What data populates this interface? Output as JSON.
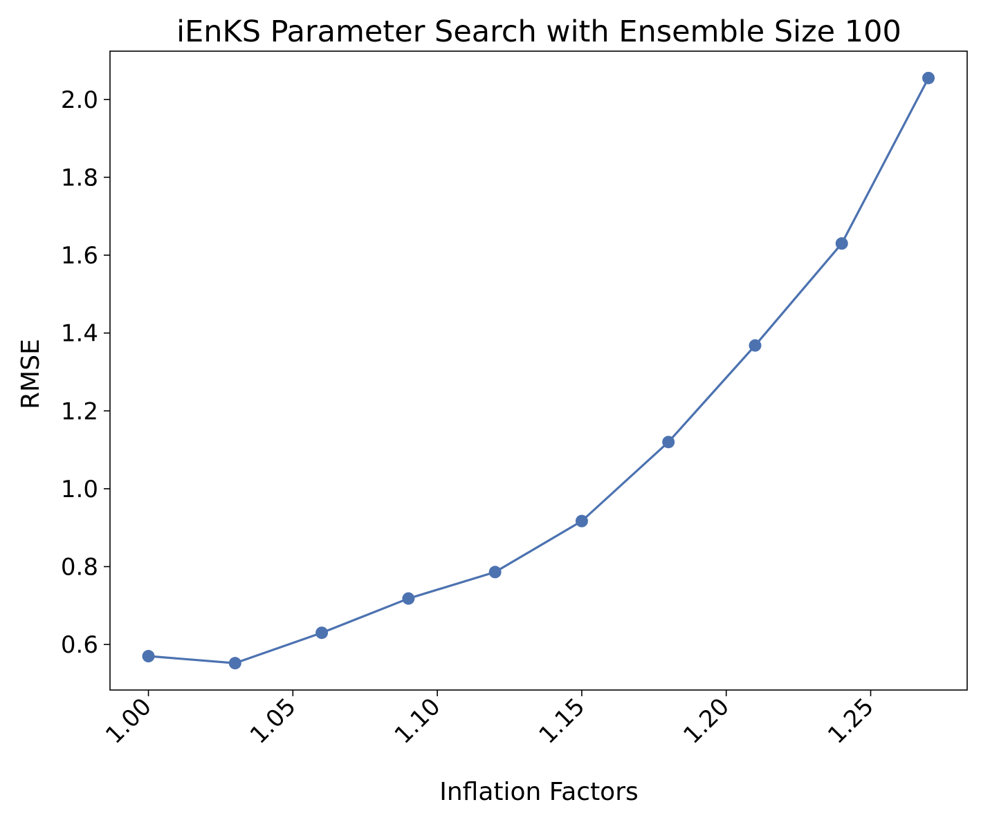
{
  "chart_data": {
    "type": "line",
    "title": "iEnKS Parameter Search with Ensemble Size 100",
    "xlabel": "Inflation Factors",
    "ylabel": "RMSE",
    "x_ticks": [
      "1.00",
      "1.05",
      "1.10",
      "1.15",
      "1.20",
      "1.25"
    ],
    "y_ticks": [
      "0.6",
      "0.8",
      "1.0",
      "1.2",
      "1.4",
      "1.6",
      "1.8",
      "2.0"
    ],
    "xlim": [
      0.9867,
      1.2834
    ],
    "ylim": [
      0.483,
      2.124
    ],
    "grid": false,
    "series": [
      {
        "color": "#4c72b0",
        "marker": "circle",
        "x": [
          1.0,
          1.03,
          1.06,
          1.09,
          1.12,
          1.15,
          1.18,
          1.21,
          1.24,
          1.27
        ],
        "y": [
          0.57,
          0.552,
          0.63,
          0.718,
          0.786,
          0.917,
          1.12,
          1.368,
          1.63,
          2.055
        ]
      }
    ]
  }
}
